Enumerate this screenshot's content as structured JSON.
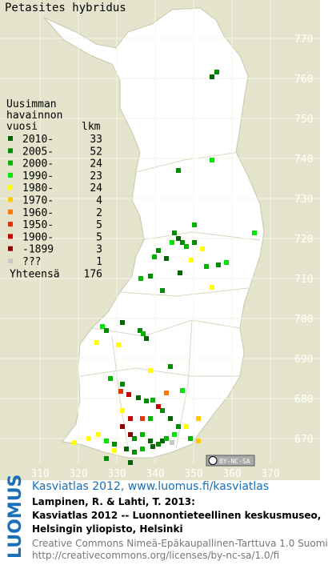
{
  "title": "Petasites hybridus",
  "legend": {
    "heading": [
      "Uusimman",
      "havainnon",
      "vuosi"
    ],
    "count_heading": "lkm",
    "rows": [
      {
        "label": "2010-",
        "count": 33,
        "color": "#006400"
      },
      {
        "label": "2005-",
        "count": 52,
        "color": "#008c00"
      },
      {
        "label": "2000-",
        "count": 24,
        "color": "#00b400"
      },
      {
        "label": "1990-",
        "count": 23,
        "color": "#00e600"
      },
      {
        "label": "1980-",
        "count": 24,
        "color": "#ffff00"
      },
      {
        "label": "1970-",
        "count": 4,
        "color": "#ffc800"
      },
      {
        "label": "1960-",
        "count": 2,
        "color": "#ff7800"
      },
      {
        "label": "1950-",
        "count": 5,
        "color": "#e63200"
      },
      {
        "label": "1900-",
        "count": 5,
        "color": "#c80000"
      },
      {
        "label": "-1899",
        "count": 3,
        "color": "#8c0000"
      },
      {
        "label": "???",
        "count": 1,
        "color": "#c8c8c8"
      }
    ],
    "total": {
      "label": "Yhteensä",
      "count": 176
    }
  },
  "grid": {
    "y_labels": [
      "770",
      "760",
      "750",
      "740",
      "730",
      "720",
      "710",
      "700",
      "690",
      "680",
      "670"
    ],
    "x_labels": [
      "310",
      "320",
      "330",
      "340",
      "350",
      "360",
      "370"
    ]
  },
  "license_badge": "BY-NC-SA",
  "footer": {
    "brand": "LUOMUS",
    "link": "Kasviatlas 2012, www.luomus.fi/kasviatlas",
    "citation": [
      "Lampinen, R. & Lahti, T. 2013:",
      "Kasviatlas 2012 -- Luonnontieteellinen keskusmuseo,",
      "Helsingin yliopisto, Helsinki"
    ],
    "license": [
      "Creative Commons Nimeä-Epäkaupallinen-Tarttuva 1.0 Suomi",
      "http://creativecommons.org/licenses/by-nc-sa/1.0/fi"
    ]
  }
}
